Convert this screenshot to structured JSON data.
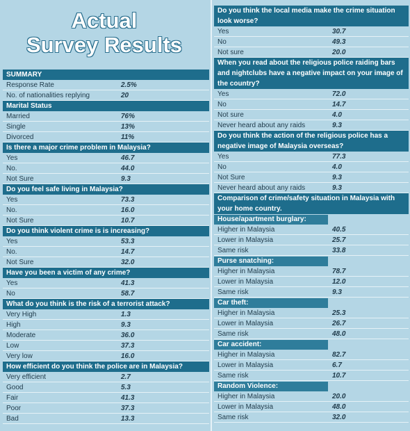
{
  "title": [
    "Actual",
    "Survey Results"
  ],
  "left": [
    {
      "heading": "SUMMARY",
      "rows": [
        [
          "Response Rate",
          "2.5%"
        ],
        [
          "No. of nationalities replying",
          "20"
        ]
      ]
    },
    {
      "heading": "Marital Status",
      "rows": [
        [
          "Married",
          "76%"
        ],
        [
          "Single",
          "13%"
        ],
        [
          "Divorced",
          "11%"
        ]
      ]
    },
    {
      "heading": "Is there a major crime problem in Malaysia?",
      "rows": [
        [
          "Yes",
          "46.7"
        ],
        [
          "No.",
          "44.0"
        ],
        [
          "Not Sure",
          "9.3"
        ]
      ]
    },
    {
      "heading": "Do you feel safe living in Malaysia?",
      "rows": [
        [
          "Yes",
          "73.3"
        ],
        [
          "No.",
          "16.0"
        ],
        [
          "Not Sure",
          "10.7"
        ]
      ]
    },
    {
      "heading": "Do you think violent crime is is increasing?",
      "rows": [
        [
          "Yes",
          "53.3"
        ],
        [
          "No.",
          "14.7"
        ],
        [
          "Not Sure",
          "32.0"
        ]
      ]
    },
    {
      "heading": "Have you been a victim of any crime?",
      "rows": [
        [
          "Yes",
          "41.3"
        ],
        [
          "No",
          "58.7"
        ]
      ]
    },
    {
      "heading": "What do you think is the risk of a terrorist attack?",
      "rows": [
        [
          "Very High",
          "1.3"
        ],
        [
          "High",
          "9.3"
        ],
        [
          "Moderate",
          "36.0"
        ],
        [
          "Low",
          "37.3"
        ],
        [
          "Very low",
          "16.0"
        ]
      ]
    },
    {
      "heading": "How efficient do you think the police are in Malaysia?",
      "rows": [
        [
          "Very efficient",
          "2.7"
        ],
        [
          "Good",
          "5.3"
        ],
        [
          "Fair",
          "41.3"
        ],
        [
          "Poor",
          "37.3"
        ],
        [
          "Bad",
          "13.3"
        ]
      ]
    }
  ],
  "right": [
    {
      "heading": "Do you think the local media make the crime situation look worse?",
      "rows": [
        [
          "Yes",
          "30.7"
        ],
        [
          "No",
          "49.3"
        ],
        [
          "Not sure",
          "20.0"
        ]
      ]
    },
    {
      "heading": "When you read about the religious police raiding bars and nightclubs have a negative impact on your image of the country?",
      "rows": [
        [
          "Yes",
          "72.0"
        ],
        [
          "No",
          "14.7"
        ],
        [
          "Not sure",
          "4.0"
        ],
        [
          "Never heard about any raids",
          "9.3"
        ]
      ]
    },
    {
      "heading": "Do you think the action of the religious police has a negative image of Malaysia overseas?",
      "rows": [
        [
          "Yes",
          "77.3"
        ],
        [
          "No",
          "4.0"
        ],
        [
          "Not Sure",
          "9.3"
        ],
        [
          "Never heard about any raids",
          "9.3"
        ]
      ]
    },
    {
      "heading": "Comparison of crime/safety situation in Malaysia with your home country.",
      "rows": []
    },
    {
      "subheading": "House/apartment burglary:",
      "rows": [
        [
          "Higher in Malaysia",
          "40.5"
        ],
        [
          "Lower in Malaysia",
          "25.7"
        ],
        [
          "Same risk",
          "33.8"
        ]
      ]
    },
    {
      "subheading": "Purse snatching:",
      "rows": [
        [
          "Higher in Malaysia",
          "78.7"
        ],
        [
          "Lower in Malaysia",
          "12.0"
        ],
        [
          "Same risk",
          "9.3"
        ]
      ]
    },
    {
      "subheading": "Car theft:",
      "rows": [
        [
          "Higher in Malaysia",
          "25.3"
        ],
        [
          "Lower in Malaysia",
          "26.7"
        ],
        [
          "Same risk",
          "48.0"
        ]
      ]
    },
    {
      "subheading": "Car accident:",
      "rows": [
        [
          "Higher in Malaysia",
          "82.7"
        ],
        [
          "Lower in Malaysia",
          "6.7"
        ],
        [
          "Same risk",
          "10.7"
        ]
      ]
    },
    {
      "subheading": "Random Violence:",
      "rows": [
        [
          "Higher in Malaysia",
          "20.0"
        ],
        [
          "Lower in Malaysia",
          "48.0"
        ],
        [
          "Same risk",
          "32.0"
        ]
      ]
    }
  ]
}
